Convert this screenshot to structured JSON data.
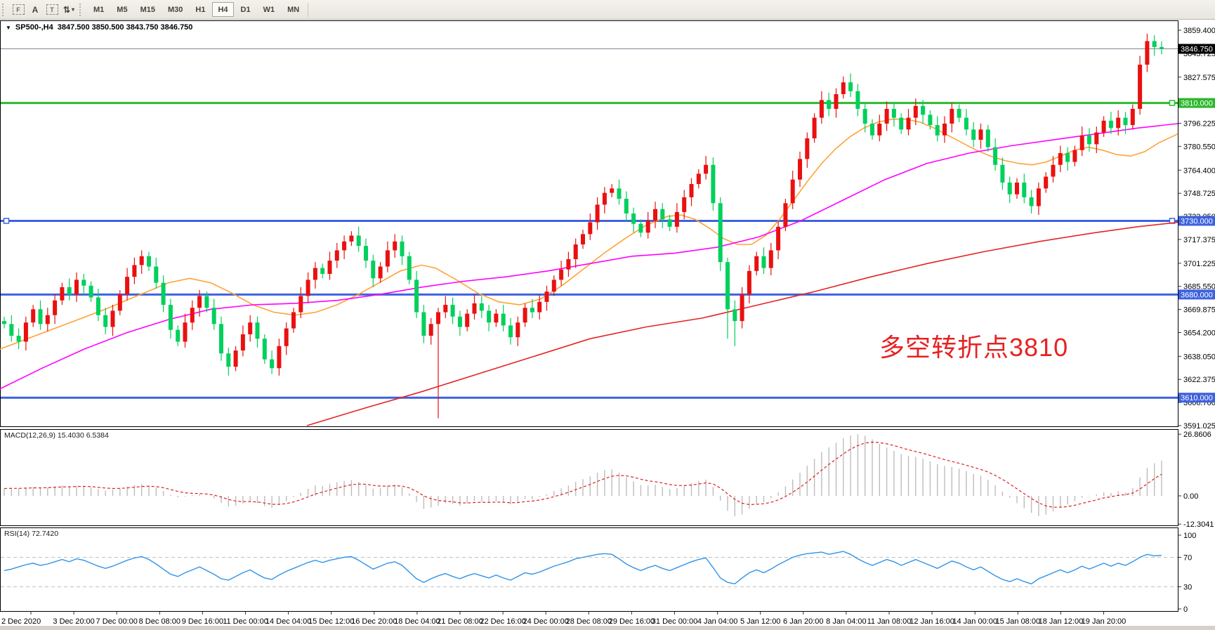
{
  "toolbar": {
    "tools": [
      {
        "name": "snap-grid-tool",
        "label": "F",
        "kind": "dashbox"
      },
      {
        "name": "text-label-tool",
        "label": "A",
        "kind": "plain"
      },
      {
        "name": "text-box-tool",
        "label": "T",
        "kind": "dashbox"
      },
      {
        "name": "cycle-arrows-tool",
        "label": "⇅",
        "kind": "plain",
        "caret": "▾"
      }
    ],
    "timeframes": [
      "M1",
      "M5",
      "M15",
      "M30",
      "H1",
      "H4",
      "D1",
      "W1",
      "MN"
    ],
    "active_timeframe": "H4"
  },
  "title_bar": {
    "collapse_glyph": "▼",
    "symbol_period": "SP500-,H4",
    "ohlc_line": "3847.500 3850.500 3843.750 3846.750"
  },
  "annotation": {
    "text": "多空转折点3810",
    "color": "#e62222"
  },
  "indicators": {
    "macd_label": "MACD(12,26,9)",
    "macd_values": "15.4030 6.5384",
    "rsi_label": "RSI(14)",
    "rsi_value": "72.7420"
  },
  "colors": {
    "candle_up": "#ea1010",
    "candle_down": "#00d05c",
    "ma_fast": "#ffa335",
    "ma_mid": "#ff00ff",
    "ma_slow": "#e42525",
    "hline_blue": "#3e62df",
    "hline_green": "#2db92d",
    "current_price_line": "#7a8694",
    "current_price_box": "#000000",
    "macd_bar": "#bdbdbd",
    "macd_signal": "#e02020",
    "rsi_line": "#2e93e8",
    "rsi_level_dash": "#c0c0c0"
  },
  "chart_data": {
    "type": "candlestick",
    "symbol": "SP500-",
    "timeframe": "H4",
    "ohlc": {
      "open": 3847.5,
      "high": 3850.5,
      "low": 3843.75,
      "close": 3846.75
    },
    "current_price": 3846.75,
    "current_price_label": "3846.750",
    "price_axis_ticks": [
      "3859.400",
      "3843.725",
      "3827.575",
      "3796.225",
      "3780.550",
      "3764.400",
      "3748.725",
      "3733.050",
      "3717.375",
      "3701.225",
      "3685.550",
      "3669.875",
      "3654.200",
      "3638.050",
      "3622.375",
      "3606.700",
      "3591.025"
    ],
    "price_range": {
      "top": 3859.4,
      "bottom": 3591.025
    },
    "hlines": [
      {
        "label": "3810.000",
        "value": 3810,
        "color": "#2db92d",
        "handles": [
          "right"
        ]
      },
      {
        "label": "3730.000",
        "value": 3730,
        "color": "#3e62df",
        "handles": [
          "left",
          "right"
        ]
      },
      {
        "label": "3680.000",
        "value": 3680,
        "color": "#3e62df",
        "handles": []
      },
      {
        "label": "3610.000",
        "value": 3610,
        "color": "#3e62df",
        "handles": []
      }
    ],
    "time_labels": [
      "2 Dec 2020",
      "3 Dec 20:00",
      "7 Dec 00:00",
      "8 Dec 08:00",
      "9 Dec 16:00",
      "11 Dec 00:00",
      "14 Dec 04:00",
      "15 Dec 12:00",
      "16 Dec 20:00",
      "18 Dec 04:00",
      "21 Dec 08:00",
      "22 Dec 16:00",
      "24 Dec 00:00",
      "28 Dec 08:00",
      "29 Dec 16:00",
      "31 Dec 00:00",
      "4 Jan 04:00",
      "5 Jan 12:00",
      "6 Jan 20:00",
      "8 Jan 04:00",
      "11 Jan 08:00",
      "12 Jan 16:00",
      "14 Jan 00:00",
      "15 Jan 08:00",
      "18 Jan 12:00",
      "19 Jan 20:00"
    ],
    "candles": {
      "first_open": 3662,
      "wick_pad": 3,
      "closes": [
        3660,
        3652,
        3648,
        3661,
        3670,
        3660,
        3666,
        3676,
        3685,
        3680,
        3690,
        3686,
        3678,
        3666,
        3658,
        3669,
        3680,
        3692,
        3700,
        3706,
        3699,
        3688,
        3673,
        3656,
        3648,
        3661,
        3671,
        3679,
        3671,
        3660,
        3640,
        3631,
        3642,
        3653,
        3661,
        3650,
        3636,
        3630,
        3645,
        3657,
        3668,
        3679,
        3690,
        3698,
        3694,
        3703,
        3710,
        3716,
        3720,
        3713,
        3703,
        3691,
        3699,
        3710,
        3716,
        3706,
        3690,
        3668,
        3652,
        3660,
        3668,
        3673,
        3665,
        3658,
        3667,
        3674,
        3669,
        3661,
        3667,
        3659,
        3651,
        3661,
        3671,
        3668,
        3675,
        3682,
        3690,
        3697,
        3704,
        3714,
        3721,
        3729,
        3741,
        3749,
        3752,
        3745,
        3735,
        3728,
        3722,
        3730,
        3738,
        3731,
        3726,
        3736,
        3746,
        3755,
        3762,
        3768,
        3742,
        3702,
        3670,
        3662,
        3680,
        3696,
        3706,
        3698,
        3710,
        3726,
        3742,
        3758,
        3772,
        3786,
        3800,
        3812,
        3806,
        3816,
        3824,
        3818,
        3806,
        3796,
        3788,
        3796,
        3806,
        3800,
        3792,
        3800,
        3808,
        3802,
        3795,
        3788,
        3796,
        3806,
        3800,
        3792,
        3785,
        3792,
        3780,
        3768,
        3756,
        3748,
        3756,
        3746,
        3740,
        3752,
        3760,
        3768,
        3776,
        3770,
        3778,
        3788,
        3782,
        3790,
        3798,
        3793,
        3800,
        3795,
        3806,
        3836,
        3852,
        3848,
        3846.75
      ],
      "wick_overrides": {
        "60": {
          "low": 3596
        },
        "98": {
          "high": 3773
        },
        "100": {
          "low": 3650
        },
        "101": {
          "low": 3645
        },
        "116": {
          "high": 3828
        },
        "158": {
          "high": 3857
        },
        "160": {
          "high": 3852,
          "low": 3843
        }
      }
    },
    "ma_lines": [
      {
        "name": "ma-fast-orange",
        "color": "#ffa335",
        "points": [
          [
            0,
            3643
          ],
          [
            50,
            3652
          ],
          [
            100,
            3661
          ],
          [
            150,
            3670
          ],
          [
            200,
            3680
          ],
          [
            240,
            3688
          ],
          [
            270,
            3691
          ],
          [
            300,
            3688
          ],
          [
            330,
            3681
          ],
          [
            360,
            3673
          ],
          [
            390,
            3668
          ],
          [
            420,
            3666
          ],
          [
            450,
            3668
          ],
          [
            480,
            3673
          ],
          [
            510,
            3680
          ],
          [
            540,
            3688
          ],
          [
            570,
            3696
          ],
          [
            600,
            3700
          ],
          [
            620,
            3698
          ],
          [
            650,
            3690
          ],
          [
            680,
            3681
          ],
          [
            710,
            3675
          ],
          [
            740,
            3673
          ],
          [
            770,
            3677
          ],
          [
            800,
            3686
          ],
          [
            830,
            3697
          ],
          [
            860,
            3708
          ],
          [
            890,
            3718
          ],
          [
            920,
            3727
          ],
          [
            950,
            3733
          ],
          [
            970,
            3734
          ],
          [
            990,
            3731
          ],
          [
            1010,
            3725
          ],
          [
            1030,
            3718
          ],
          [
            1050,
            3714
          ],
          [
            1070,
            3714
          ],
          [
            1090,
            3720
          ],
          [
            1110,
            3731
          ],
          [
            1130,
            3744
          ],
          [
            1150,
            3757
          ],
          [
            1170,
            3769
          ],
          [
            1190,
            3779
          ],
          [
            1210,
            3787
          ],
          [
            1230,
            3793
          ],
          [
            1250,
            3797
          ],
          [
            1270,
            3799
          ],
          [
            1290,
            3799
          ],
          [
            1310,
            3797
          ],
          [
            1330,
            3793
          ],
          [
            1350,
            3788
          ],
          [
            1370,
            3783
          ],
          [
            1390,
            3778
          ],
          [
            1410,
            3774
          ],
          [
            1430,
            3771
          ],
          [
            1450,
            3769
          ],
          [
            1470,
            3768
          ],
          [
            1490,
            3770
          ],
          [
            1510,
            3774
          ],
          [
            1530,
            3778
          ],
          [
            1550,
            3780
          ],
          [
            1570,
            3778
          ],
          [
            1590,
            3775
          ],
          [
            1610,
            3774
          ],
          [
            1630,
            3777
          ],
          [
            1650,
            3783
          ],
          [
            1677,
            3789
          ]
        ]
      },
      {
        "name": "ma-mid-magenta",
        "color": "#ff00ff",
        "points": [
          [
            0,
            3616
          ],
          [
            60,
            3630
          ],
          [
            120,
            3643
          ],
          [
            180,
            3654
          ],
          [
            240,
            3663
          ],
          [
            300,
            3670
          ],
          [
            360,
            3673
          ],
          [
            420,
            3674
          ],
          [
            480,
            3676
          ],
          [
            540,
            3680
          ],
          [
            600,
            3685
          ],
          [
            660,
            3689
          ],
          [
            720,
            3692
          ],
          [
            780,
            3696
          ],
          [
            840,
            3701
          ],
          [
            900,
            3706
          ],
          [
            960,
            3708
          ],
          [
            1020,
            3712
          ],
          [
            1080,
            3719
          ],
          [
            1140,
            3730
          ],
          [
            1200,
            3744
          ],
          [
            1260,
            3758
          ],
          [
            1320,
            3769
          ],
          [
            1380,
            3776
          ],
          [
            1440,
            3781
          ],
          [
            1500,
            3785
          ],
          [
            1560,
            3789
          ],
          [
            1620,
            3793
          ],
          [
            1677,
            3796
          ]
        ]
      },
      {
        "name": "ma-slow-red",
        "color": "#e42525",
        "points": [
          [
            437,
            3591
          ],
          [
            520,
            3603
          ],
          [
            600,
            3614
          ],
          [
            680,
            3626
          ],
          [
            760,
            3638
          ],
          [
            840,
            3650
          ],
          [
            920,
            3658
          ],
          [
            1000,
            3664
          ],
          [
            1080,
            3673
          ],
          [
            1160,
            3682
          ],
          [
            1240,
            3692
          ],
          [
            1320,
            3701
          ],
          [
            1400,
            3709
          ],
          [
            1480,
            3716
          ],
          [
            1560,
            3722
          ],
          [
            1620,
            3726
          ],
          [
            1677,
            3729
          ]
        ]
      }
    ],
    "macd": {
      "axis_labels": [
        "26.8606",
        "0.00",
        "-12.3041"
      ],
      "axis": {
        "max": 26.8606,
        "zero": 0.0,
        "min": -12.3041
      },
      "histogram": [
        3.2,
        3.5,
        3.3,
        3.6,
        3.9,
        3.5,
        3.7,
        4.1,
        4.5,
        4.1,
        4.5,
        4.3,
        3.7,
        2.9,
        2.3,
        2.7,
        3.3,
        4.1,
        4.7,
        5.1,
        4.5,
        3.5,
        2.1,
        0.5,
        -0.7,
        -0.3,
        0.3,
        0.9,
        0.1,
        -1.1,
        -3.1,
        -4.7,
        -4.3,
        -3.3,
        -2.5,
        -3.1,
        -4.5,
        -5.3,
        -3.9,
        -2.3,
        -0.5,
        1.3,
        3.1,
        4.5,
        4.3,
        5.1,
        5.9,
        6.5,
        6.9,
        6.1,
        4.7,
        3.1,
        3.3,
        4.3,
        4.9,
        3.7,
        1.1,
        -2.7,
        -5.7,
        -5.1,
        -4.3,
        -3.1,
        -3.5,
        -4.3,
        -3.3,
        -2.3,
        -2.5,
        -3.1,
        -2.3,
        -2.9,
        -3.7,
        -2.7,
        -1.3,
        -1.5,
        -0.5,
        0.7,
        2.1,
        3.3,
        4.5,
        6.1,
        7.3,
        8.5,
        10.1,
        11.3,
        11.5,
        10.1,
        8.1,
        6.3,
        4.7,
        4.5,
        4.9,
        3.9,
        2.9,
        3.3,
        4.3,
        5.5,
        6.5,
        7.1,
        3.9,
        -2.1,
        -6.5,
        -8.9,
        -8.1,
        -5.7,
        -3.3,
        -2.7,
        -1.1,
        1.5,
        4.1,
        7.1,
        10.1,
        13.1,
        16.1,
        19.1,
        21.1,
        23.1,
        25.1,
        26.3,
        26.8,
        26.2,
        24.6,
        22.6,
        21.0,
        19.6,
        18.2,
        17.4,
        17.0,
        16.2,
        15.0,
        13.8,
        13.0,
        12.6,
        11.8,
        10.8,
        9.6,
        8.8,
        7.0,
        4.6,
        1.8,
        -0.8,
        -3.2,
        -5.4,
        -7.4,
        -8.8,
        -8.2,
        -6.8,
        -5.0,
        -3.8,
        -2.4,
        -0.8,
        -0.2,
        0.6,
        1.6,
        1.2,
        2.0,
        1.4,
        3.4,
        8.0,
        12.2,
        14.2,
        15.4
      ]
    },
    "rsi": {
      "axis_labels": [
        "100",
        "70",
        "30",
        "0"
      ],
      "levels": [
        70,
        30
      ],
      "series": [
        52,
        54,
        57,
        60,
        62,
        59,
        61,
        64,
        67,
        64,
        68,
        66,
        62,
        58,
        55,
        58,
        62,
        66,
        69,
        71,
        67,
        61,
        54,
        47,
        44,
        49,
        53,
        57,
        52,
        47,
        41,
        39,
        44,
        49,
        53,
        47,
        42,
        40,
        46,
        51,
        55,
        59,
        63,
        66,
        63,
        66,
        68,
        70,
        71,
        66,
        60,
        54,
        58,
        62,
        64,
        59,
        50,
        41,
        36,
        41,
        45,
        48,
        44,
        41,
        45,
        48,
        45,
        42,
        46,
        42,
        39,
        44,
        49,
        47,
        50,
        54,
        58,
        61,
        64,
        68,
        70,
        72,
        74,
        75,
        74,
        68,
        61,
        56,
        52,
        56,
        59,
        55,
        52,
        56,
        60,
        64,
        67,
        69,
        56,
        42,
        36,
        34,
        42,
        49,
        53,
        49,
        54,
        60,
        65,
        70,
        73,
        75,
        76,
        77,
        74,
        76,
        78,
        74,
        68,
        63,
        59,
        63,
        67,
        64,
        59,
        63,
        67,
        63,
        59,
        55,
        60,
        65,
        62,
        57,
        53,
        57,
        51,
        45,
        40,
        37,
        41,
        37,
        34,
        41,
        45,
        49,
        53,
        49,
        53,
        58,
        54,
        58,
        62,
        58,
        62,
        59,
        64,
        70,
        74,
        72,
        72.742
      ]
    }
  }
}
